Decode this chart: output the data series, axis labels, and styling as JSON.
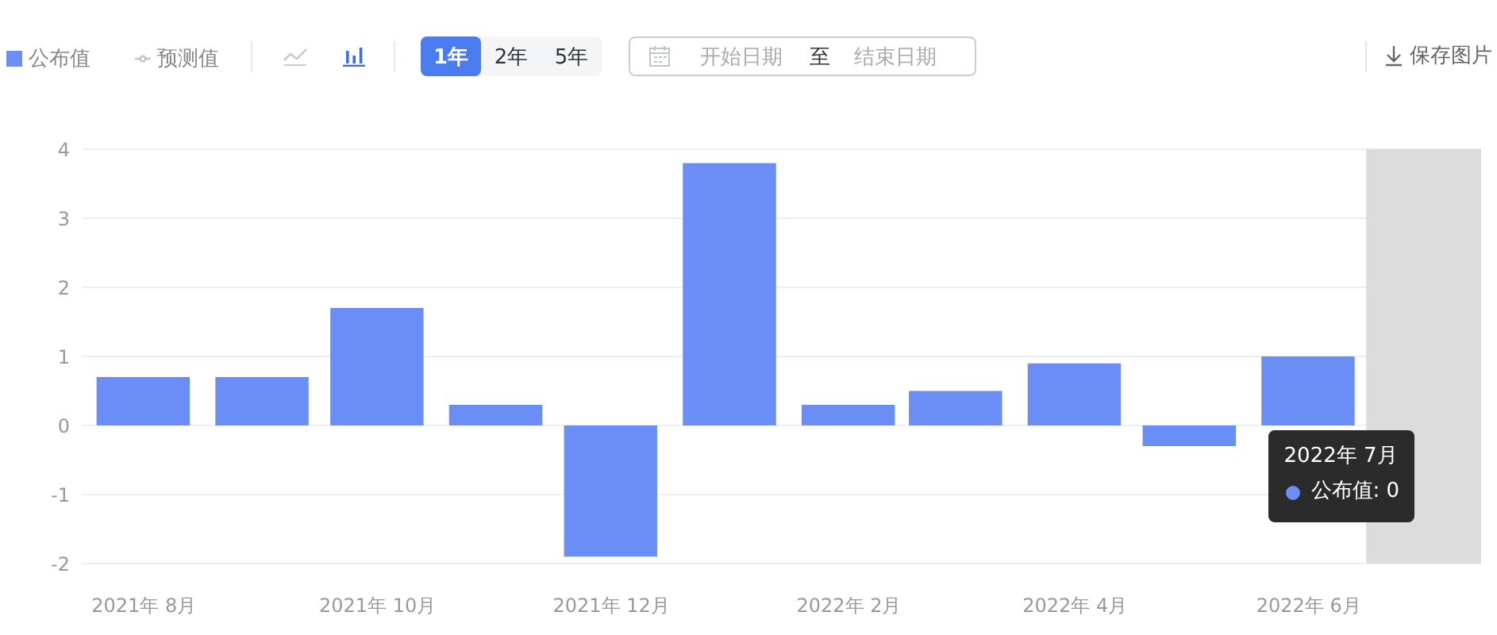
{
  "chart_data": {
    "type": "bar",
    "x": [
      "2021-08",
      "2021-09",
      "2021-10",
      "2021-11",
      "2021-12",
      "2022-01",
      "2022-02",
      "2022-03",
      "2022-04",
      "2022-05",
      "2022-06",
      "2022-07"
    ],
    "xlim": [
      "2021-07-16",
      "2022-07-16"
    ],
    "xticks": [
      {
        "value": "2021-08",
        "label": "2021年 8月"
      },
      {
        "value": "2021-10",
        "label": "2021年 10月"
      },
      {
        "value": "2021-12",
        "label": "2021年 12月"
      },
      {
        "value": "2022-02",
        "label": "2022年 2月"
      },
      {
        "value": "2022-04",
        "label": "2022年 4月"
      },
      {
        "value": "2022-06",
        "label": "2022年 6月"
      }
    ],
    "series": [
      {
        "name": "公布值",
        "color": "#6a8ef5",
        "values": [
          0.7,
          0.7,
          1.7,
          0.3,
          -1.9,
          3.8,
          0.3,
          0.5,
          0.9,
          -0.3,
          1.0,
          0
        ]
      },
      {
        "name": "预测值",
        "type": "line",
        "color": "#c0c4cc",
        "values": [
          null,
          null,
          null,
          null,
          null,
          null,
          null,
          null,
          null,
          null,
          null,
          null
        ]
      }
    ],
    "ylim": [
      -2,
      4
    ],
    "yticks": [
      -2,
      -1,
      0,
      1,
      2,
      3,
      4
    ],
    "grid": "y",
    "legend": "top left",
    "marker": "circle",
    "bands": [
      {
        "axis": "x",
        "from": "2022-06-16",
        "to": "2022-07-16",
        "color": "#dcdcdc"
      }
    ],
    "annotations": [
      "1年",
      "2年",
      "5年",
      "开始日期",
      "至",
      "结束日期",
      "保存图片",
      "2022年 7月",
      {
        "text": "公布值: 0",
        "x": "2022-07",
        "y": 0
      }
    ]
  }
}
